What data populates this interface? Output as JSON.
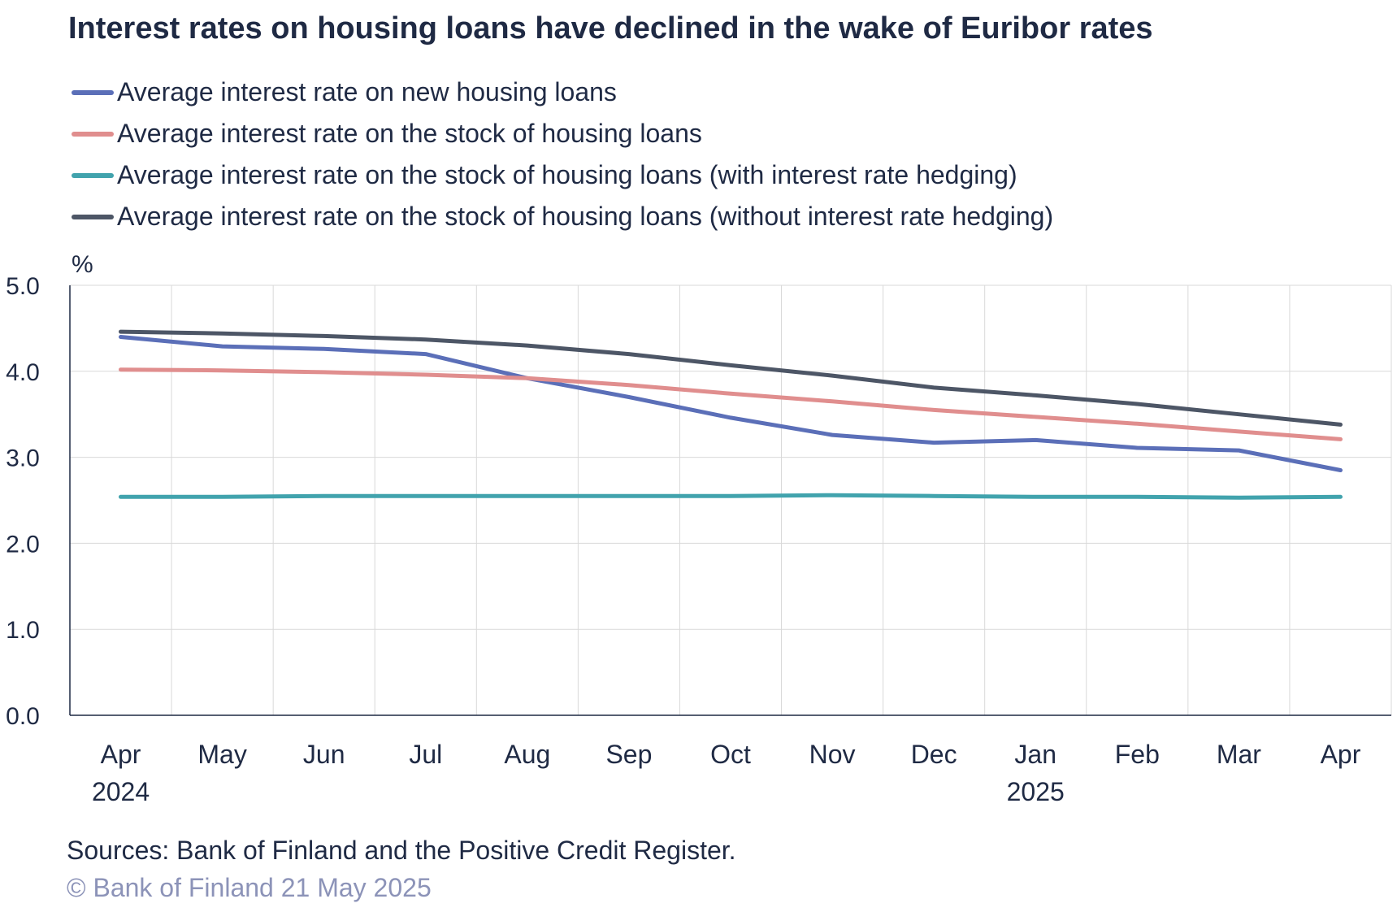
{
  "chart_data": {
    "type": "line",
    "title": "Interest rates on housing loans have declined in the wake of Euribor rates",
    "ylabel": "%",
    "ylim": [
      0,
      5
    ],
    "yticks": [
      "0.0",
      "1.0",
      "2.0",
      "3.0",
      "4.0",
      "5.0"
    ],
    "categories": [
      "Apr",
      "May",
      "Jun",
      "Jul",
      "Aug",
      "Sep",
      "Oct",
      "Nov",
      "Dec",
      "Jan",
      "Feb",
      "Mar",
      "Apr"
    ],
    "year_labels": [
      {
        "index": 0,
        "label": "2024"
      },
      {
        "index": 9,
        "label": "2025"
      }
    ],
    "grid": true,
    "legend_position": "top",
    "series": [
      {
        "name": "Average interest rate on new housing loans",
        "color": "#5b6fb8",
        "values": [
          4.4,
          4.29,
          4.26,
          4.2,
          3.92,
          3.7,
          3.46,
          3.26,
          3.17,
          3.2,
          3.11,
          3.08,
          2.85
        ]
      },
      {
        "name": "Average interest rate on the stock of housing loans",
        "color": "#e08e8e",
        "values": [
          4.02,
          4.01,
          3.99,
          3.96,
          3.92,
          3.84,
          3.74,
          3.65,
          3.55,
          3.47,
          3.39,
          3.3,
          3.21
        ]
      },
      {
        "name": "Average interest rate on the stock of housing loans (with interest rate hedging)",
        "color": "#41a3ad",
        "values": [
          2.54,
          2.54,
          2.55,
          2.55,
          2.55,
          2.55,
          2.55,
          2.56,
          2.55,
          2.54,
          2.54,
          2.53,
          2.54
        ]
      },
      {
        "name": "Average interest rate on the stock of housing loans (without interest rate hedging)",
        "color": "#4d5666",
        "values": [
          4.46,
          4.44,
          4.41,
          4.37,
          4.3,
          4.2,
          4.07,
          3.95,
          3.81,
          3.72,
          3.62,
          3.5,
          3.38
        ]
      }
    ]
  },
  "footer": {
    "sources": "Sources: Bank of Finland and the Positive Credit Register.",
    "copyright": "© Bank of Finland 21 May 2025"
  },
  "colors": {
    "title": "#1f2a44",
    "grid": "#d9d9d9",
    "axis": "#1f2a44",
    "copyright": "#8c93b8"
  }
}
